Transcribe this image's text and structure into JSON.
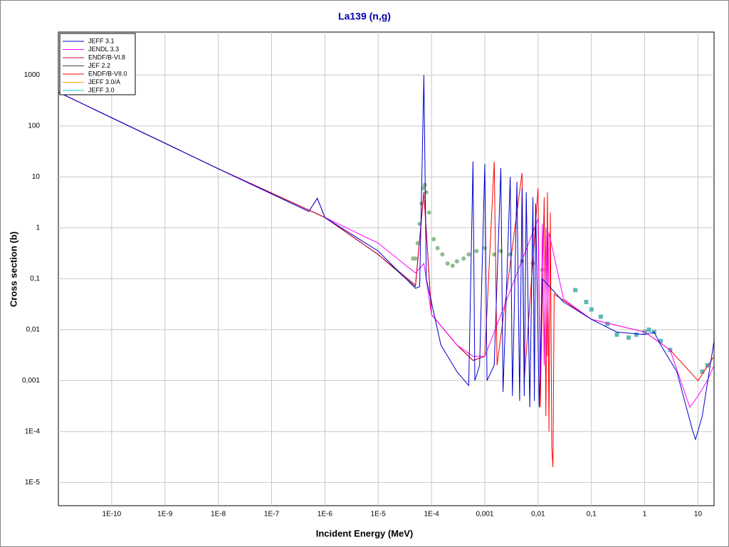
{
  "chart_data": {
    "type": "line",
    "title": "La139 (n,g)",
    "x_label": "Incident Energy (MeV)",
    "y_label": "Cross section (b)",
    "xscale": "log",
    "yscale": "log",
    "grid": true,
    "legend": "upper left",
    "xlim": [
      1e-11,
      20
    ],
    "ylim": [
      3.5e-06,
      7000
    ],
    "xticks": [
      {
        "value": 1e-10,
        "label": "1E-10"
      },
      {
        "value": 1e-09,
        "label": "1E-9"
      },
      {
        "value": 1e-08,
        "label": "1E-8"
      },
      {
        "value": 1e-07,
        "label": "1E-7"
      },
      {
        "value": 1e-06,
        "label": "1E-6"
      },
      {
        "value": 1e-05,
        "label": "1E-5"
      },
      {
        "value": 0.0001,
        "label": "1E-4"
      },
      {
        "value": 0.001,
        "label": "0,001"
      },
      {
        "value": 0.01,
        "label": "0,01"
      },
      {
        "value": 0.1,
        "label": "0,1"
      },
      1,
      10
    ],
    "yticks": [
      {
        "value": 1e-05,
        "label": "1E-5"
      },
      {
        "value": 0.0001,
        "label": "1E-4"
      },
      {
        "value": 0.001,
        "label": "0,001"
      },
      {
        "value": 0.01,
        "label": "0,01"
      },
      {
        "value": 0.1,
        "label": "0,1"
      },
      1,
      10,
      100,
      1000
    ],
    "series": [
      {
        "name": "JEFF 3.1",
        "color": "#0000cc",
        "x": [
          1e-11,
          1e-08,
          5e-07,
          7.2e-07,
          1e-06,
          1e-05,
          5e-05,
          6e-05,
          7.2e-05,
          8e-05,
          0.00015,
          0.0003,
          0.0005,
          0.0006,
          0.00065,
          0.0008,
          0.001,
          0.0011,
          0.0015,
          0.002,
          0.0022,
          0.003,
          0.0033,
          0.004,
          0.0045,
          0.005,
          0.0055,
          0.006,
          0.007,
          0.008,
          0.0085,
          0.009,
          0.0105,
          0.012,
          0.03,
          0.1,
          0.3,
          1,
          1.5,
          2,
          4,
          8,
          9,
          12,
          20
        ],
        "values": [
          460,
          14.5,
          2.1,
          3.8,
          1.6,
          0.35,
          0.065,
          0.07,
          1000,
          0.1,
          0.005,
          0.0015,
          0.0008,
          20,
          0.001,
          0.002,
          18,
          0.001,
          0.002,
          15,
          0.0006,
          10,
          0.0005,
          8,
          0.0004,
          6,
          0.0005,
          5,
          0.0003,
          4,
          0.0004,
          3,
          0.0003,
          0.1,
          0.035,
          0.016,
          0.009,
          0.008,
          0.009,
          0.005,
          0.0015,
          0.0001,
          7e-05,
          0.0002,
          0.006
        ]
      },
      {
        "name": "JENDL 3.3",
        "color": "#ff00ff",
        "x": [
          1e-11,
          1e-08,
          5e-07,
          7.2e-07,
          1e-06,
          1e-05,
          5e-05,
          7.2e-05,
          0.0001,
          0.0003,
          0.0006,
          0.001,
          0.01,
          0.011,
          0.012,
          0.013,
          0.014,
          0.015,
          0.016,
          0.03,
          0.1,
          1,
          3,
          7,
          10,
          15,
          20
        ],
        "values": [
          460,
          14.5,
          2.1,
          3.8,
          1.6,
          0.5,
          0.13,
          0.2,
          0.02,
          0.005,
          0.003,
          0.003,
          1.5,
          0.001,
          1.2,
          0.002,
          1,
          0.003,
          0.8,
          0.04,
          0.016,
          0.009,
          0.004,
          0.0003,
          0.0005,
          0.001,
          0.002
        ]
      },
      {
        "name": "ENDF/B-VI.8",
        "color": "#cc0033",
        "x": [
          1e-11,
          1e-08,
          1e-06,
          1e-05,
          5e-05,
          7.2e-05,
          0.0001,
          0.0003,
          0.0006,
          0.001
        ],
        "values": [
          460,
          14.5,
          1.6,
          0.3,
          0.075,
          5,
          0.02,
          0.005,
          0.0025,
          0.003
        ]
      },
      {
        "name": "JEF 2.2",
        "color": "#404040",
        "x": [
          1e-11,
          1e-08,
          1e-06,
          1e-05,
          5e-05
        ],
        "values": [
          460,
          14.5,
          1.6,
          0.3,
          0.07
        ]
      },
      {
        "name": "ENDF/B-VII.0",
        "color": "#ff0000",
        "x": [
          1e-11,
          1e-08,
          1e-06,
          1e-05,
          5e-05,
          7.2e-05,
          0.0001,
          0.0003,
          0.0006,
          0.001,
          0.0015,
          0.0017,
          0.005,
          0.0055,
          0.01,
          0.011,
          0.013,
          0.014,
          0.015,
          0.016,
          0.017,
          0.018,
          0.019,
          0.02,
          0.1,
          1,
          3,
          10,
          20
        ],
        "values": [
          460,
          14.5,
          1.6,
          0.3,
          0.07,
          5,
          0.02,
          0.005,
          0.0025,
          0.003,
          20,
          0.002,
          12,
          0.001,
          6,
          0.0003,
          4,
          0.0002,
          5,
          0.0001,
          2,
          5e-05,
          2e-05,
          0.05,
          0.016,
          0.009,
          0.004,
          0.001,
          0.003
        ]
      },
      {
        "name": "JEFF 3.0/A",
        "color": "#ffa500",
        "x": [
          1e-11,
          1e-08,
          1e-06
        ],
        "values": [
          460,
          14.5,
          1.6
        ]
      },
      {
        "name": "JEFF 3.0",
        "color": "#00cccc",
        "x": [
          1e-11,
          1e-08,
          1e-06
        ],
        "values": [
          460,
          14.5,
          1.6
        ]
      }
    ],
    "measurements": [
      {
        "color": "#8fbc8f",
        "x": [
          4.5e-05,
          5e-05,
          5.5e-05,
          6e-05,
          6.5e-05,
          7e-05,
          7.5e-05,
          8e-05,
          9e-05,
          0.00011,
          0.00013,
          0.00016,
          0.0002,
          0.00025,
          0.0003,
          0.0004,
          0.0005,
          0.0007,
          0.001,
          0.0015,
          0.002,
          0.003,
          0.005,
          0.008,
          0.012
        ],
        "values": [
          0.25,
          0.25,
          0.5,
          1.2,
          3,
          6,
          7,
          5,
          2,
          0.6,
          0.4,
          0.3,
          0.2,
          0.18,
          0.22,
          0.25,
          0.3,
          0.35,
          0.4,
          0.3,
          0.35,
          0.3,
          0.22,
          0.2,
          0.15
        ]
      },
      {
        "color": "#5fb8b8",
        "x": [
          0.05,
          0.08,
          0.1,
          0.15,
          0.2,
          0.3,
          0.5,
          0.7,
          1,
          1.2,
          1.5,
          2,
          3,
          12,
          15
        ],
        "values": [
          0.06,
          0.035,
          0.025,
          0.018,
          0.013,
          0.008,
          0.007,
          0.008,
          0.009,
          0.01,
          0.009,
          0.006,
          0.004,
          0.0015,
          0.002
        ]
      }
    ]
  }
}
